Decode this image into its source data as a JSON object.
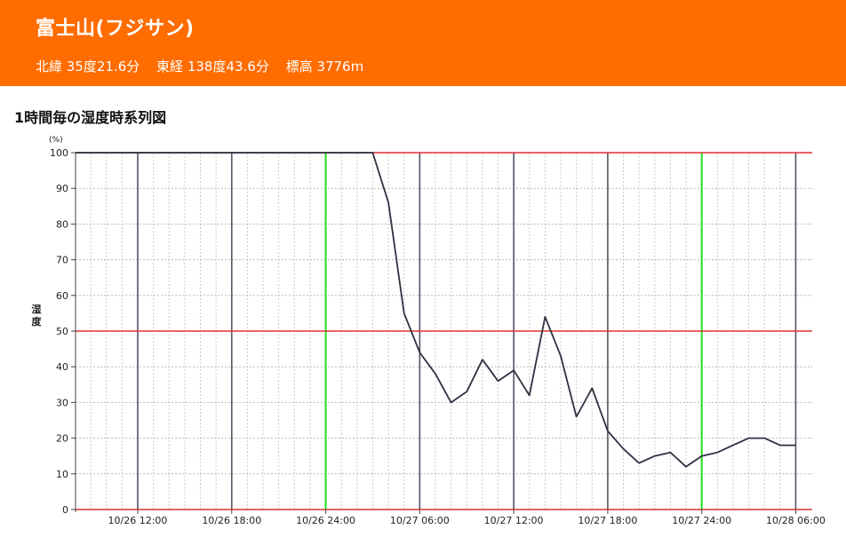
{
  "header": {
    "title": "富士山(フジサン)",
    "latitude": "北緯 35度21.6分",
    "longitude": "東経 138度43.6分",
    "elevation": "標高 3776m",
    "background": "#ff6c00"
  },
  "section_title": "1時間毎の湿度時系列図",
  "chart_data": {
    "type": "line",
    "title": "1時間毎の湿度時系列図",
    "ylabel": "湿度",
    "yunit": "(%)",
    "ylim": [
      0,
      100
    ],
    "yticks": [
      0,
      10,
      20,
      30,
      40,
      50,
      60,
      70,
      80,
      90,
      100
    ],
    "xlim_hours": [
      -1,
      45
    ],
    "xtick_labels": [
      {
        "hour": 3,
        "label": "10/26 12:00"
      },
      {
        "hour": 9,
        "label": "10/26 18:00"
      },
      {
        "hour": 15,
        "label": "10/26 24:00"
      },
      {
        "hour": 21,
        "label": "10/27 06:00"
      },
      {
        "hour": 27,
        "label": "10/27 12:00"
      },
      {
        "hour": 33,
        "label": "10/27 18:00"
      },
      {
        "hour": 39,
        "label": "10/27 24:00"
      },
      {
        "hour": 45,
        "label": "10/28 06:00"
      }
    ],
    "grid": true,
    "series": [
      {
        "color": "#2e3142",
        "x": [
          -1,
          0,
          1,
          2,
          3,
          4,
          5,
          6,
          7,
          8,
          9,
          10,
          11,
          12,
          13,
          14,
          15,
          16,
          17,
          18,
          19,
          20,
          21,
          22,
          23,
          24,
          25,
          26,
          27,
          28,
          29,
          30,
          31,
          32,
          33,
          34,
          35,
          36,
          37,
          38,
          39,
          40,
          41,
          42,
          43,
          44,
          45
        ],
        "values": [
          100,
          100,
          100,
          100,
          100,
          100,
          100,
          100,
          100,
          100,
          100,
          100,
          100,
          100,
          100,
          100,
          100,
          100,
          100,
          100,
          86,
          55,
          44,
          38,
          30,
          33,
          42,
          36,
          39,
          32,
          54,
          43,
          26,
          34,
          22,
          17,
          13,
          15,
          16,
          12,
          15,
          16,
          18,
          20,
          20,
          18,
          18
        ]
      }
    ],
    "colors": {
      "ref_line": "#e03030",
      "midnight_line": "#22dd22",
      "six_hour_line": "#555566",
      "grid_major": "#b8b8b8",
      "grid_minor": "#cccccc"
    }
  }
}
